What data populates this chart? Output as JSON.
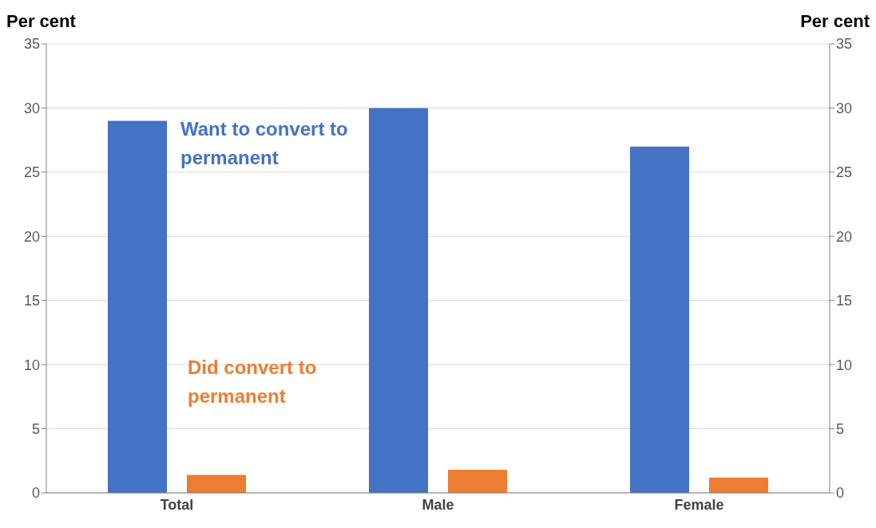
{
  "chart_data": {
    "type": "bar",
    "categories": [
      "Total",
      "Male",
      "Female"
    ],
    "series": [
      {
        "name": "Want to convert to permanent",
        "color": "#4472c4",
        "values": [
          29,
          30,
          27
        ]
      },
      {
        "name": "Did convert to permanent",
        "color": "#ed7d31",
        "values": [
          1.4,
          1.8,
          1.2
        ]
      }
    ],
    "ylabel": "Per cent",
    "y2label": "Per cent",
    "ylim": [
      0,
      35
    ],
    "yticks": [
      0,
      5,
      10,
      15,
      20,
      25,
      30,
      35
    ],
    "y2lim": [
      0,
      35
    ],
    "y2ticks": [
      0,
      5,
      10,
      15,
      20,
      25,
      30,
      35
    ],
    "grid": "y"
  }
}
